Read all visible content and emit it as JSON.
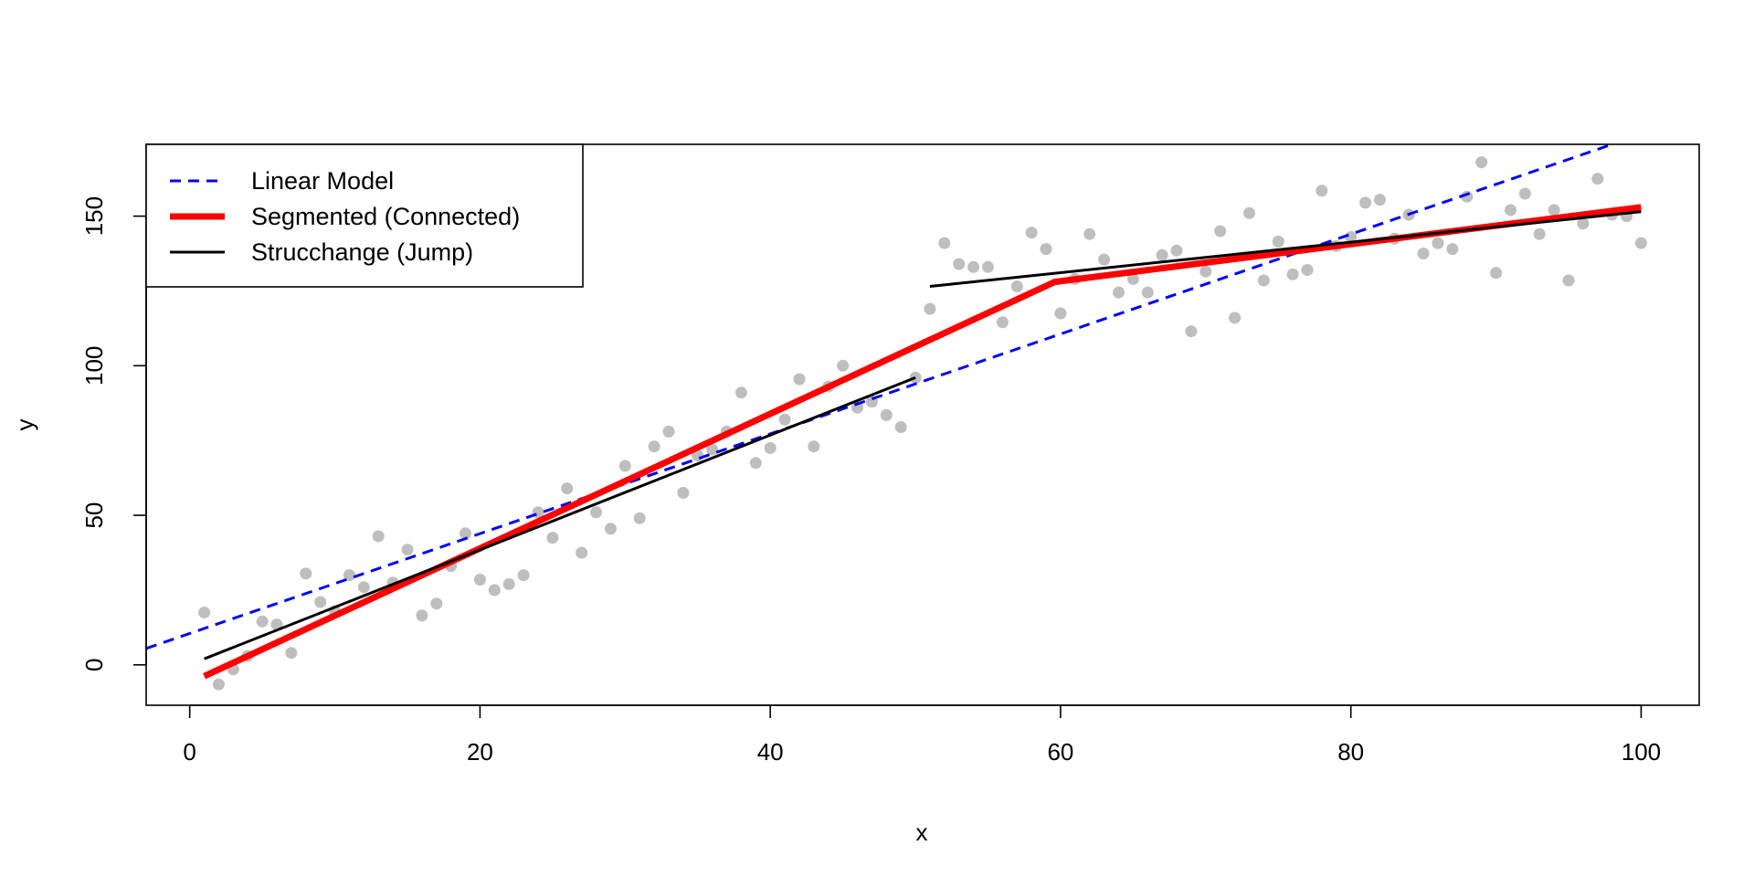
{
  "chart_data": {
    "type": "scatter",
    "xlabel": "x",
    "ylabel": "y",
    "xlim": [
      -3,
      104
    ],
    "ylim": [
      -13.5,
      174
    ],
    "x_ticks": [
      0,
      20,
      40,
      60,
      80,
      100
    ],
    "y_ticks": [
      0,
      50,
      100,
      150
    ],
    "grid": false,
    "legend_position": "top-left",
    "colors": {
      "points": "#bebebe",
      "linear": "#0000ff",
      "segmented": "#ff0000",
      "strucchange": "#000000"
    },
    "points": [
      [
        1,
        17.5
      ],
      [
        2,
        -6.5
      ],
      [
        3,
        -1.5
      ],
      [
        4,
        3
      ],
      [
        5,
        14.5
      ],
      [
        6,
        13.5
      ],
      [
        7,
        4
      ],
      [
        8,
        30.5
      ],
      [
        9,
        21
      ],
      [
        10,
        18
      ],
      [
        11,
        30
      ],
      [
        12,
        26
      ],
      [
        13,
        43
      ],
      [
        14,
        27.5
      ],
      [
        15,
        38.5
      ],
      [
        16,
        16.5
      ],
      [
        17,
        20.5
      ],
      [
        18,
        33
      ],
      [
        19,
        44
      ],
      [
        20,
        28.5
      ],
      [
        21,
        25
      ],
      [
        22,
        27
      ],
      [
        23,
        30
      ],
      [
        24,
        51
      ],
      [
        25,
        42.5
      ],
      [
        26,
        59
      ],
      [
        27,
        37.5
      ],
      [
        28,
        51
      ],
      [
        29,
        45.5
      ],
      [
        30,
        66.5
      ],
      [
        31,
        49
      ],
      [
        32,
        73
      ],
      [
        33,
        78
      ],
      [
        34,
        57.5
      ],
      [
        35,
        70
      ],
      [
        36,
        72
      ],
      [
        37,
        78
      ],
      [
        38,
        91
      ],
      [
        39,
        67.5
      ],
      [
        40,
        72.5
      ],
      [
        41,
        82
      ],
      [
        42,
        95.5
      ],
      [
        43,
        73
      ],
      [
        44,
        93
      ],
      [
        45,
        100
      ],
      [
        46,
        86
      ],
      [
        47,
        88
      ],
      [
        48,
        83.5
      ],
      [
        49,
        79.5
      ],
      [
        50,
        96
      ],
      [
        51,
        119
      ],
      [
        52,
        141
      ],
      [
        53,
        134
      ],
      [
        54,
        133
      ],
      [
        55,
        133
      ],
      [
        56,
        114.5
      ],
      [
        57,
        126.5
      ],
      [
        58,
        144.5
      ],
      [
        59,
        139
      ],
      [
        60,
        117.5
      ],
      [
        61,
        129
      ],
      [
        62,
        144
      ],
      [
        63,
        135.5
      ],
      [
        64,
        124.5
      ],
      [
        65,
        129
      ],
      [
        66,
        124.5
      ],
      [
        67,
        137
      ],
      [
        68,
        138.5
      ],
      [
        69,
        111.5
      ],
      [
        70,
        131.5
      ],
      [
        71,
        145
      ],
      [
        72,
        116
      ],
      [
        73,
        151
      ],
      [
        74,
        128.5
      ],
      [
        75,
        141.5
      ],
      [
        76,
        130.5
      ],
      [
        77,
        132
      ],
      [
        78,
        158.5
      ],
      [
        79,
        140
      ],
      [
        80,
        143
      ],
      [
        81,
        154.5
      ],
      [
        82,
        155.5
      ],
      [
        83,
        142.5
      ],
      [
        84,
        150.5
      ],
      [
        85,
        137.5
      ],
      [
        86,
        141
      ],
      [
        87,
        139
      ],
      [
        88,
        156.5
      ],
      [
        89,
        168
      ],
      [
        90,
        131
      ],
      [
        91,
        152
      ],
      [
        92,
        157.5
      ],
      [
        93,
        144
      ],
      [
        94,
        152
      ],
      [
        95,
        128.5
      ],
      [
        96,
        147.5
      ],
      [
        97,
        162.5
      ],
      [
        98,
        150.5
      ],
      [
        99,
        150
      ],
      [
        100,
        141
      ]
    ],
    "series": [
      {
        "name": "Linear Model",
        "style": "dashed",
        "x": [
          -3,
          98
        ],
        "y": [
          5.5,
          174
        ]
      },
      {
        "name": "Segmented (Connected)",
        "style": "solid-thick",
        "x": [
          1,
          59.6,
          100
        ],
        "y": [
          -3.8,
          128,
          153
        ]
      },
      {
        "name": "Strucchange (Jump)",
        "style": "solid",
        "segments": [
          {
            "x": [
              1,
              50
            ],
            "y": [
              2,
              96
            ]
          },
          {
            "x": [
              51,
              100
            ],
            "y": [
              126.5,
              151.5
            ]
          }
        ]
      }
    ]
  }
}
